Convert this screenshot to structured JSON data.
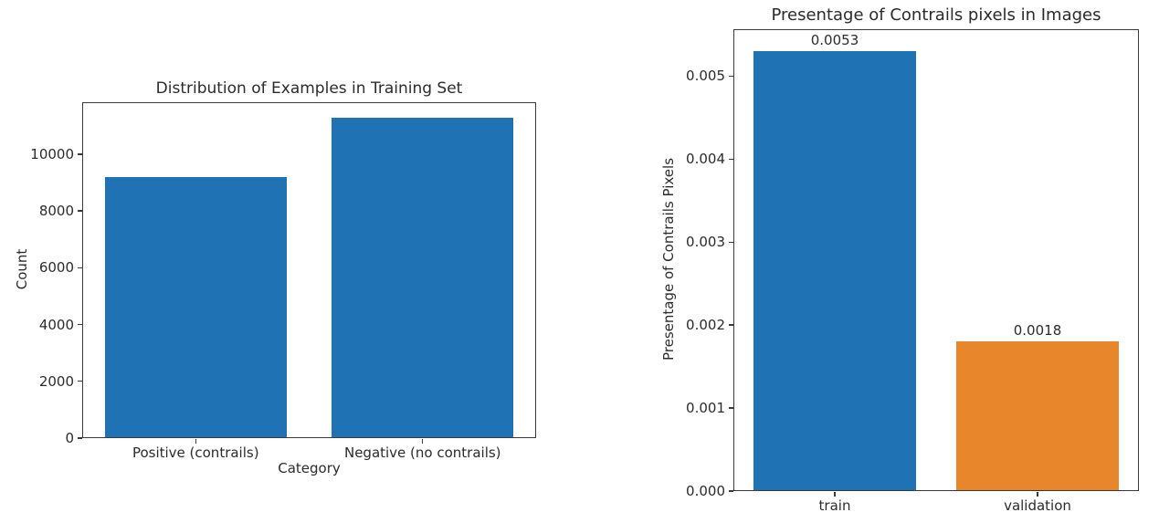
{
  "page": {
    "background_color": "#ffffff",
    "text_color": "#2b2b2b",
    "accent_blue": "#1f72b4",
    "accent_orange": "#e8862c"
  },
  "chart_data": [
    {
      "id": "training-set-distribution",
      "type": "bar",
      "title": "Distribution of Examples in Training Set",
      "xlabel": "Category",
      "ylabel": "Count",
      "categories": [
        "Positive (contrails)",
        "Negative (no contrails)"
      ],
      "values": [
        9200,
        11280
      ],
      "bar_colors": [
        "#1f72b4",
        "#1f72b4"
      ],
      "bar_labels": null,
      "yticks": [
        0,
        2000,
        4000,
        6000,
        8000,
        10000
      ],
      "ytick_labels": [
        "0",
        "2000",
        "4000",
        "6000",
        "8000",
        "10000"
      ],
      "ylim": [
        0,
        11830
      ],
      "grid": false,
      "legend": null
    },
    {
      "id": "contrails-pixel-percentage",
      "type": "bar",
      "title": "Presentage of Contrails pixels in Images",
      "xlabel": "",
      "ylabel": "Presentage of Contrails Pixels",
      "categories": [
        "train",
        "validation"
      ],
      "values": [
        0.0053,
        0.0018
      ],
      "bar_colors": [
        "#1f72b4",
        "#e8862c"
      ],
      "bar_labels": [
        "0.0053",
        "0.0018"
      ],
      "yticks": [
        0,
        0.001,
        0.002,
        0.003,
        0.004,
        0.005
      ],
      "ytick_labels": [
        "0.000",
        "0.001",
        "0.002",
        "0.003",
        "0.004",
        "0.005"
      ],
      "ylim": [
        0,
        0.005565
      ],
      "grid": false,
      "legend": null
    }
  ]
}
